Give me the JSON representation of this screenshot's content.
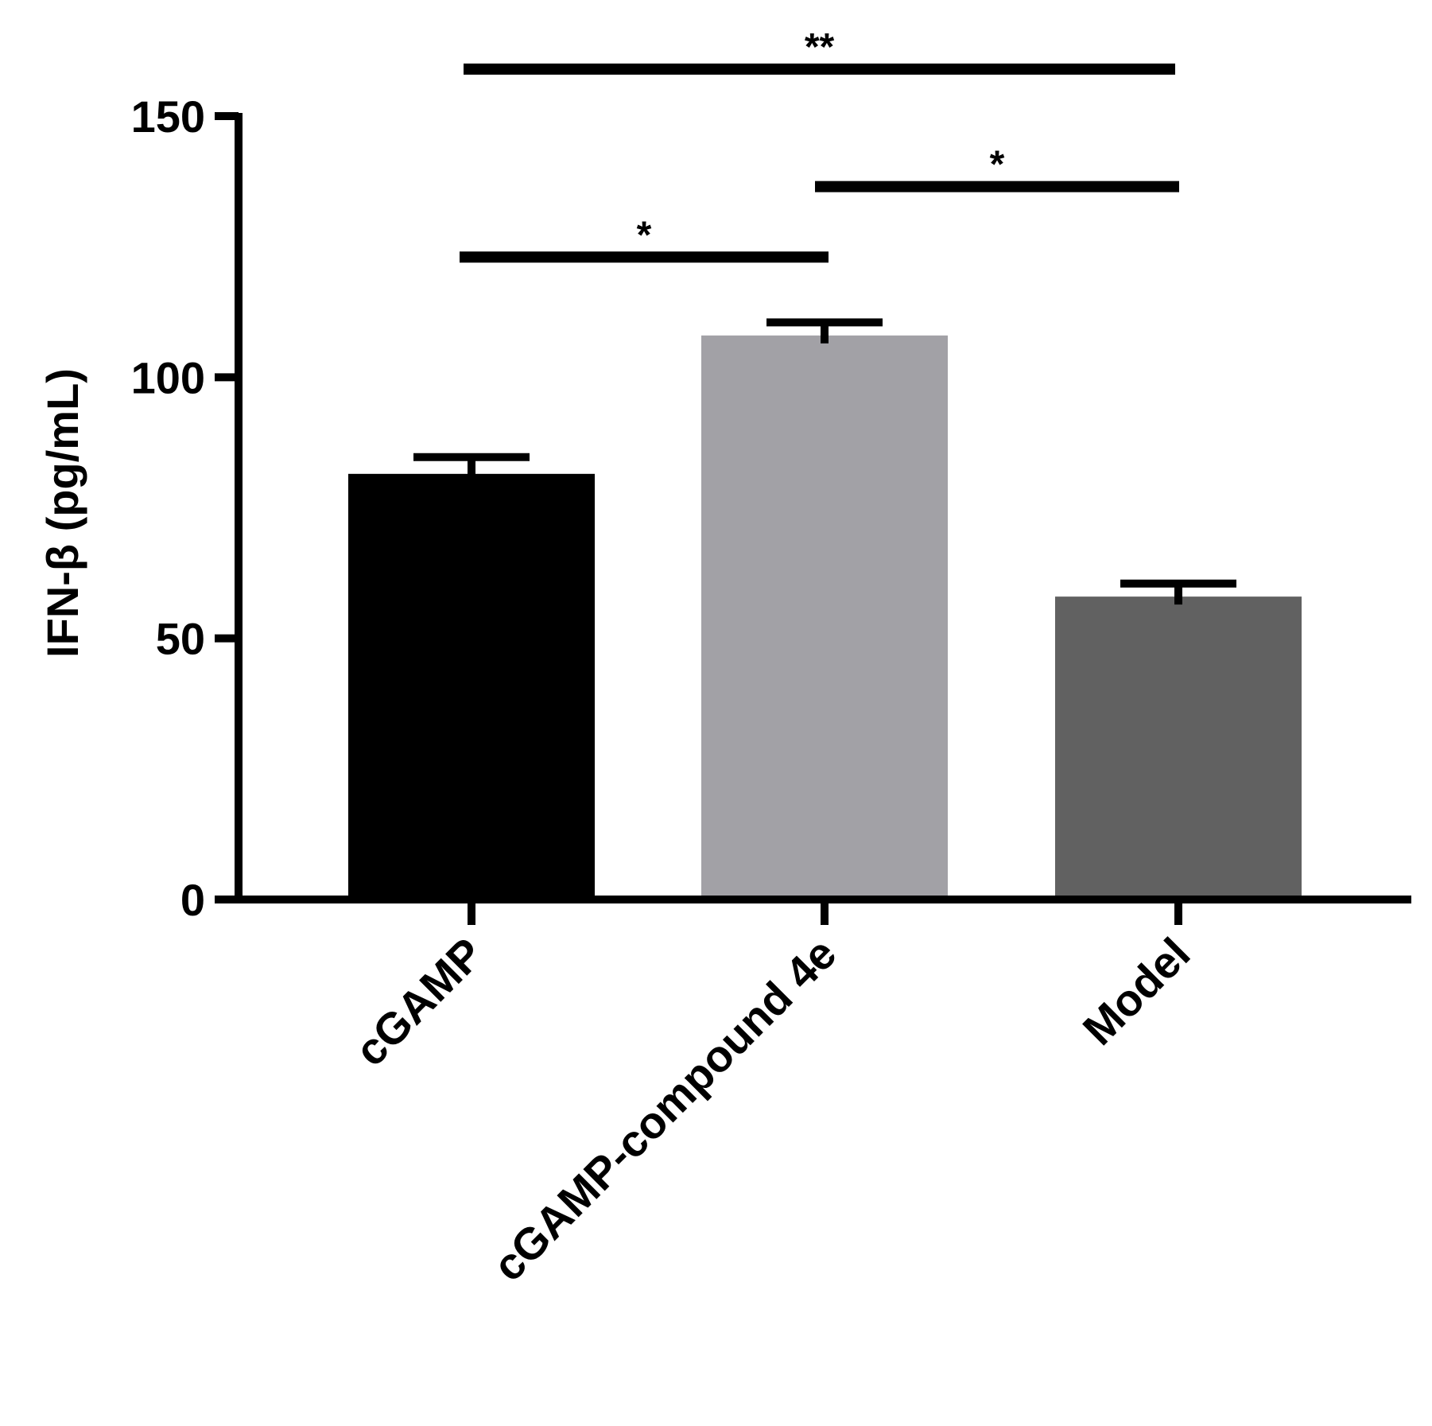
{
  "chart_data": {
    "type": "bar",
    "title": "",
    "xlabel": "",
    "ylabel": "IFN-β (pg/mL)",
    "ylim": [
      0,
      150
    ],
    "yticks": [
      0,
      50,
      100,
      150
    ],
    "categories": [
      "cGAMP",
      "cGAMP-compound 4e",
      "Model"
    ],
    "values": [
      81.5,
      108,
      58
    ],
    "errors": [
      3.2,
      2.5,
      2.5
    ],
    "colors": [
      "#000000",
      "#a2a1a6",
      "#616161"
    ],
    "grid": false,
    "legend": "none",
    "significance": [
      {
        "from": 0,
        "to": 1,
        "label": "*",
        "y": 123
      },
      {
        "from": 1,
        "to": 2,
        "label": "*",
        "y": 136.5
      },
      {
        "from": 0,
        "to": 2,
        "label": "**",
        "y": 159
      }
    ]
  }
}
